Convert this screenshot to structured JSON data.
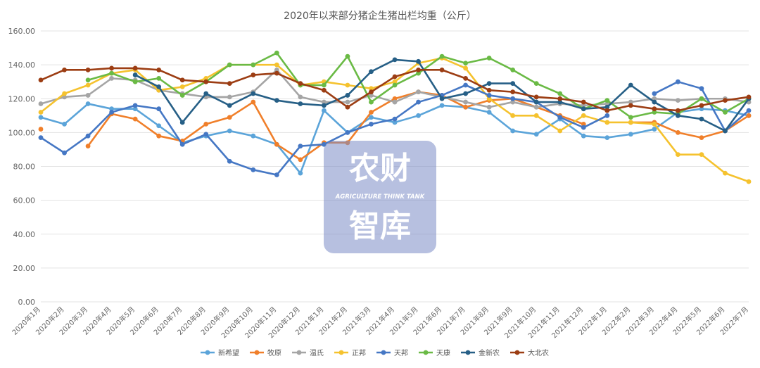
{
  "chart_data": {
    "type": "line",
    "title": "2020年以来部分猪企生猪出栏均重（公斤）",
    "xlabel": "",
    "ylabel": "",
    "ylim": [
      0,
      160
    ],
    "yticks": [
      "0.00",
      "20.00",
      "40.00",
      "60.00",
      "80.00",
      "100.00",
      "120.00",
      "140.00",
      "160.00"
    ],
    "grid": true,
    "legend_position": "bottom",
    "categories": [
      "2020年1月",
      "2020年2月",
      "2020年3月",
      "2020年4月",
      "2020年5月",
      "2020年6月",
      "2020年7月",
      "2020年8月",
      "2020年9月",
      "2020年10月",
      "2020年11月",
      "2020年12月",
      "2021年1月",
      "2021年2月",
      "2021年3月",
      "2021年4月",
      "2021年5月",
      "2021年6月",
      "2021年7月",
      "2021年8月",
      "2021年9月",
      "2021年10月",
      "2021年11月",
      "2021年12月",
      "2022年1月",
      "2022年2月",
      "2022年3月",
      "2022年4月",
      "2022年5月",
      "2022年6月",
      "2022年7月"
    ],
    "series": [
      {
        "name": "新希望",
        "color": "#5ba4d9",
        "values": [
          109,
          105,
          117,
          114,
          114,
          104,
          94,
          98,
          101,
          98,
          93,
          76,
          113,
          100,
          109,
          106,
          110,
          116,
          115,
          112,
          101,
          99,
          108,
          98,
          97,
          99,
          102,
          112,
          114,
          113,
          110
        ]
      },
      {
        "name": "牧原",
        "color": "#f07f2a",
        "values": [
          102,
          null,
          92,
          111,
          108,
          98,
          95,
          105,
          109,
          118,
          93,
          84,
          94,
          94,
          112,
          120,
          124,
          122,
          115,
          119,
          120,
          115,
          110,
          105,
          null,
          106,
          106,
          100,
          97,
          101,
          110
        ]
      },
      {
        "name": "温氏",
        "color": "#a5a5a5",
        "values": [
          117,
          121,
          122,
          132,
          131,
          125,
          123,
          121,
          121,
          124,
          137,
          121,
          118,
          118,
          122,
          118,
          124,
          121,
          118,
          115,
          118,
          115,
          117,
          116,
          117,
          118,
          120,
          119,
          120,
          120,
          118
        ]
      },
      {
        "name": "正邦",
        "color": "#f5c22e",
        "values": [
          112,
          123,
          128,
          135,
          137,
          125,
          127,
          132,
          140,
          140,
          140,
          128,
          130,
          128,
          126,
          130,
          141,
          144,
          138,
          120,
          110,
          110,
          101,
          110,
          106,
          106,
          105,
          87,
          87,
          76,
          71
        ]
      },
      {
        "name": "天邦",
        "color": "#4577c4",
        "values": [
          97,
          88,
          98,
          112,
          116,
          114,
          93,
          99,
          83,
          78,
          75,
          92,
          93,
          100,
          105,
          108,
          118,
          122,
          128,
          122,
          120,
          118,
          109,
          103,
          110,
          null,
          123,
          130,
          126,
          101,
          113
        ]
      },
      {
        "name": "天康",
        "color": "#6aba45",
        "values": [
          null,
          null,
          131,
          135,
          130,
          132,
          122,
          130,
          140,
          140,
          147,
          128,
          128,
          145,
          118,
          128,
          135,
          145,
          141,
          144,
          137,
          129,
          123,
          114,
          119,
          109,
          112,
          111,
          120,
          112,
          120
        ]
      },
      {
        "name": "金新农",
        "color": "#265f86",
        "values": [
          null,
          null,
          null,
          null,
          134,
          127,
          106,
          123,
          116,
          123,
          119,
          117,
          116,
          122,
          136,
          143,
          142,
          120,
          123,
          129,
          129,
          118,
          118,
          114,
          115,
          128,
          118,
          110,
          108,
          101,
          120
        ]
      },
      {
        "name": "大北农",
        "color": "#9c3d13",
        "values": [
          131,
          137,
          137,
          138,
          138,
          137,
          131,
          130,
          129,
          134,
          135,
          129,
          125,
          115,
          124,
          133,
          137,
          137,
          132,
          125,
          124,
          121,
          120,
          118,
          113,
          116,
          114,
          113,
          116,
          119,
          121
        ]
      }
    ]
  },
  "watermark": {
    "line1": "农财",
    "line2": "AGRICULTURE  THINK TANK",
    "line3": "智库"
  }
}
